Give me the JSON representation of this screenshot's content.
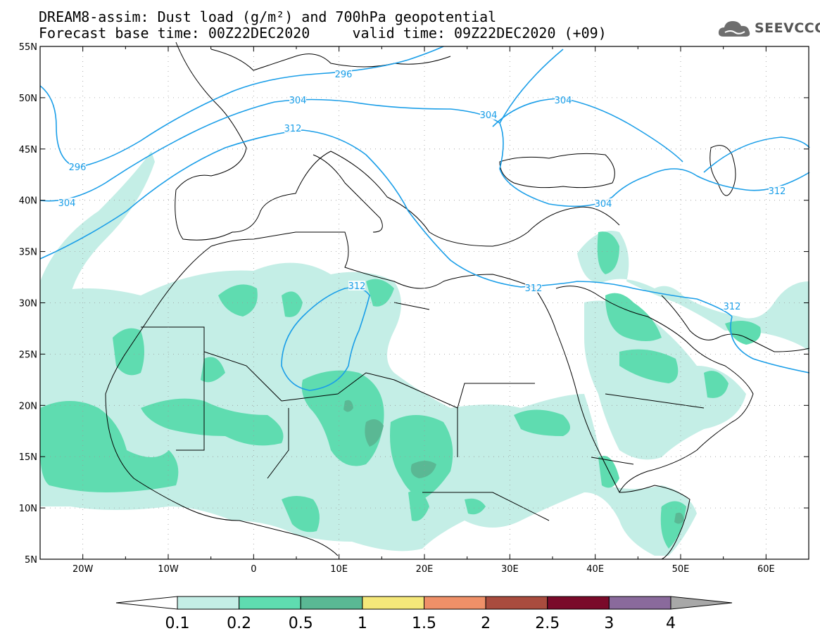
{
  "title": {
    "line1": "DREAM8-assim: Dust load (g/m²) and 700hPa geopotential",
    "line2": "Forecast base time: 00Z22DEC2020     valid time: 09Z22DEC2020 (+09)"
  },
  "logo": {
    "icon": "cloud-icon",
    "text": "SEEVCCC"
  },
  "map": {
    "lon_range": [
      -25,
      65
    ],
    "lat_range": [
      5,
      55
    ],
    "lat_ticks": [
      "55N",
      "50N",
      "45N",
      "40N",
      "35N",
      "30N",
      "25N",
      "20N",
      "15N",
      "10N",
      "5N"
    ],
    "lon_ticks": [
      "20W",
      "10W",
      "0",
      "10E",
      "20E",
      "30E",
      "40E",
      "50E",
      "60E"
    ],
    "contours": [
      {
        "label": "296"
      },
      {
        "label": "296"
      },
      {
        "label": "304"
      },
      {
        "label": "304"
      },
      {
        "label": "304"
      },
      {
        "label": "304"
      },
      {
        "label": "304"
      },
      {
        "label": "312"
      },
      {
        "label": "312"
      },
      {
        "label": "312"
      },
      {
        "label": "312"
      }
    ]
  },
  "colorbar": {
    "labels": [
      "0.1",
      "0.2",
      "0.5",
      "1",
      "1.5",
      "2",
      "2.5",
      "3",
      "4"
    ],
    "colors": [
      "#c4eee6",
      "#5fdcb0",
      "#5ab894",
      "#f5e87a",
      "#ef9068",
      "#a94c3e",
      "#7a0a2a",
      "#8a6a9c",
      "#a8a8a8"
    ],
    "under_color": "#ffffff"
  }
}
